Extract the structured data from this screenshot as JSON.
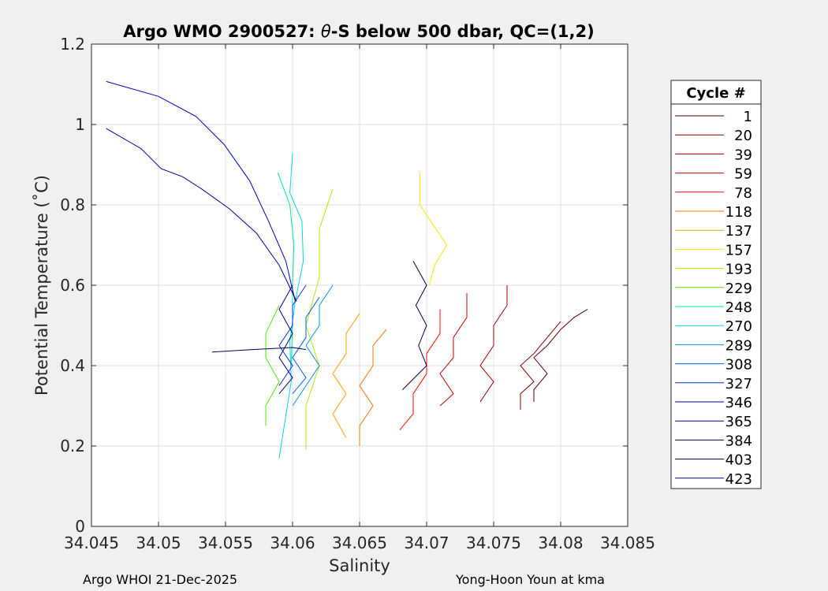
{
  "chart_data": {
    "type": "line",
    "title_prefix": "Argo WMO 2900527: ",
    "title_theta": "θ",
    "title_suffix": "-S below 500 dbar,  QC=(1,2)",
    "xlabel": "Salinity",
    "ylabel": "Potential Temperature (˚C)",
    "xlim": [
      34.045,
      34.085
    ],
    "ylim": [
      0,
      1.2
    ],
    "xticks": [
      "34.045",
      "34.05",
      "34.055",
      "34.06",
      "34.065",
      "34.07",
      "34.075",
      "34.08",
      "34.085"
    ],
    "yticks": [
      "0",
      "0.2",
      "0.4",
      "0.6",
      "0.8",
      "1",
      "1.2"
    ],
    "grid": true,
    "legend_position": "right",
    "legend_title": "Cycle #",
    "series": [
      {
        "name": "1",
        "color": "#500000",
        "points": [
          [
            34.082,
            0.54
          ],
          [
            34.081,
            0.52
          ],
          [
            34.08,
            0.49
          ],
          [
            34.079,
            0.45
          ],
          [
            34.078,
            0.42
          ],
          [
            34.079,
            0.38
          ],
          [
            34.078,
            0.34
          ],
          [
            34.078,
            0.31
          ]
        ]
      },
      {
        "name": "20",
        "color": "#800000",
        "points": [
          [
            34.08,
            0.51
          ],
          [
            34.079,
            0.47
          ],
          [
            34.078,
            0.43
          ],
          [
            34.077,
            0.4
          ],
          [
            34.078,
            0.36
          ],
          [
            34.077,
            0.33
          ],
          [
            34.077,
            0.29
          ]
        ]
      },
      {
        "name": "39",
        "color": "#a00000",
        "points": [
          [
            34.076,
            0.6
          ],
          [
            34.076,
            0.55
          ],
          [
            34.075,
            0.5
          ],
          [
            34.075,
            0.45
          ],
          [
            34.074,
            0.4
          ],
          [
            34.075,
            0.36
          ],
          [
            34.074,
            0.31
          ]
        ]
      },
      {
        "name": "59",
        "color": "#c80000",
        "points": [
          [
            34.073,
            0.58
          ],
          [
            34.073,
            0.52
          ],
          [
            34.072,
            0.47
          ],
          [
            34.072,
            0.42
          ],
          [
            34.071,
            0.38
          ],
          [
            34.072,
            0.33
          ],
          [
            34.071,
            0.3
          ]
        ]
      },
      {
        "name": "78",
        "color": "#ee1000",
        "points": [
          [
            34.071,
            0.54
          ],
          [
            34.071,
            0.48
          ],
          [
            34.07,
            0.43
          ],
          [
            34.07,
            0.38
          ],
          [
            34.069,
            0.33
          ],
          [
            34.069,
            0.28
          ],
          [
            34.068,
            0.24
          ]
        ]
      },
      {
        "name": "118",
        "color": "#ff7000",
        "points": [
          [
            34.067,
            0.49
          ],
          [
            34.066,
            0.45
          ],
          [
            34.066,
            0.4
          ],
          [
            34.065,
            0.35
          ],
          [
            34.066,
            0.3
          ],
          [
            34.065,
            0.25
          ],
          [
            34.065,
            0.2
          ]
        ]
      },
      {
        "name": "137",
        "color": "#ffa000",
        "points": [
          [
            34.065,
            0.53
          ],
          [
            34.064,
            0.48
          ],
          [
            34.064,
            0.43
          ],
          [
            34.063,
            0.38
          ],
          [
            34.064,
            0.33
          ],
          [
            34.063,
            0.28
          ],
          [
            34.064,
            0.22
          ]
        ]
      },
      {
        "name": "157",
        "color": "#ffe400",
        "points": [
          [
            34.0695,
            0.88
          ],
          [
            34.0695,
            0.8
          ],
          [
            34.0715,
            0.7
          ],
          [
            34.0706,
            0.65
          ],
          [
            34.0702,
            0.6
          ]
        ]
      },
      {
        "name": "193",
        "color": "#a8f000",
        "points": [
          [
            34.063,
            0.84
          ],
          [
            34.062,
            0.74
          ],
          [
            34.062,
            0.62
          ],
          [
            34.061,
            0.5
          ],
          [
            34.062,
            0.4
          ],
          [
            34.061,
            0.3
          ],
          [
            34.061,
            0.19
          ]
        ]
      },
      {
        "name": "229",
        "color": "#50e800",
        "points": [
          [
            34.059,
            0.55
          ],
          [
            34.058,
            0.48
          ],
          [
            34.058,
            0.42
          ],
          [
            34.059,
            0.36
          ],
          [
            34.058,
            0.3
          ],
          [
            34.058,
            0.25
          ]
        ]
      },
      {
        "name": "248",
        "color": "#00e8a0",
        "points": [
          [
            34.0589,
            0.88
          ],
          [
            34.0598,
            0.8
          ],
          [
            34.0601,
            0.7
          ],
          [
            34.06,
            0.6
          ],
          [
            34.06,
            0.5
          ],
          [
            34.0599,
            0.4
          ]
        ]
      },
      {
        "name": "270",
        "color": "#00d8e8",
        "points": [
          [
            34.06,
            0.93
          ],
          [
            34.0598,
            0.83
          ],
          [
            34.0607,
            0.76
          ],
          [
            34.0608,
            0.66
          ],
          [
            34.0602,
            0.56
          ],
          [
            34.0598,
            0.46
          ],
          [
            34.0599,
            0.36
          ],
          [
            34.059,
            0.17
          ]
        ]
      },
      {
        "name": "289",
        "color": "#0090ff",
        "points": [
          [
            34.063,
            0.6
          ],
          [
            34.062,
            0.55
          ],
          [
            34.062,
            0.5
          ],
          [
            34.061,
            0.45
          ],
          [
            34.062,
            0.4
          ],
          [
            34.061,
            0.35
          ],
          [
            34.06,
            0.3
          ]
        ]
      },
      {
        "name": "308",
        "color": "#0060ff",
        "points": [
          [
            34.062,
            0.57
          ],
          [
            34.061,
            0.52
          ],
          [
            34.061,
            0.47
          ],
          [
            34.06,
            0.42
          ],
          [
            34.061,
            0.37
          ],
          [
            34.06,
            0.33
          ]
        ]
      },
      {
        "name": "327",
        "color": "#0030e8",
        "points": [
          [
            34.061,
            0.6
          ],
          [
            34.06,
            0.55
          ],
          [
            34.06,
            0.5
          ],
          [
            34.059,
            0.45
          ],
          [
            34.06,
            0.4
          ],
          [
            34.059,
            0.35
          ]
        ]
      },
      {
        "name": "346",
        "color": "#0000c0",
        "points": [
          [
            34.0461,
            1.107
          ],
          [
            34.05,
            1.07
          ],
          [
            34.0528,
            1.02
          ],
          [
            34.0549,
            0.95
          ],
          [
            34.0568,
            0.86
          ],
          [
            34.0582,
            0.76
          ],
          [
            34.0595,
            0.66
          ],
          [
            34.0602,
            0.56
          ]
        ]
      },
      {
        "name": "365",
        "color": "#000090",
        "points": [
          [
            34.0461,
            0.99
          ],
          [
            34.0487,
            0.94
          ],
          [
            34.0502,
            0.89
          ],
          [
            34.0518,
            0.87
          ],
          [
            34.0532,
            0.84
          ],
          [
            34.0553,
            0.79
          ],
          [
            34.0573,
            0.73
          ],
          [
            34.059,
            0.65
          ],
          [
            34.0603,
            0.56
          ]
        ]
      },
      {
        "name": "384",
        "color": "#000060",
        "points": [
          [
            34.054,
            0.434
          ],
          [
            34.057,
            0.44
          ],
          [
            34.06,
            0.445
          ],
          [
            34.061,
            0.44
          ]
        ]
      },
      {
        "name": "403",
        "color": "#000040",
        "points": [
          [
            34.069,
            0.66
          ],
          [
            34.07,
            0.6
          ],
          [
            34.0692,
            0.55
          ],
          [
            34.07,
            0.5
          ],
          [
            34.0694,
            0.45
          ],
          [
            34.07,
            0.4
          ],
          [
            34.0682,
            0.34
          ]
        ]
      },
      {
        "name": "423",
        "color": "#000080",
        "points": [
          [
            34.06,
            0.6
          ],
          [
            34.059,
            0.54
          ],
          [
            34.06,
            0.48
          ],
          [
            34.059,
            0.42
          ],
          [
            34.06,
            0.37
          ],
          [
            34.059,
            0.33
          ]
        ]
      }
    ]
  },
  "footer": {
    "left": "Argo WHOI 21-Dec-2025",
    "right": "Yong-Hoon Youn at kma"
  }
}
